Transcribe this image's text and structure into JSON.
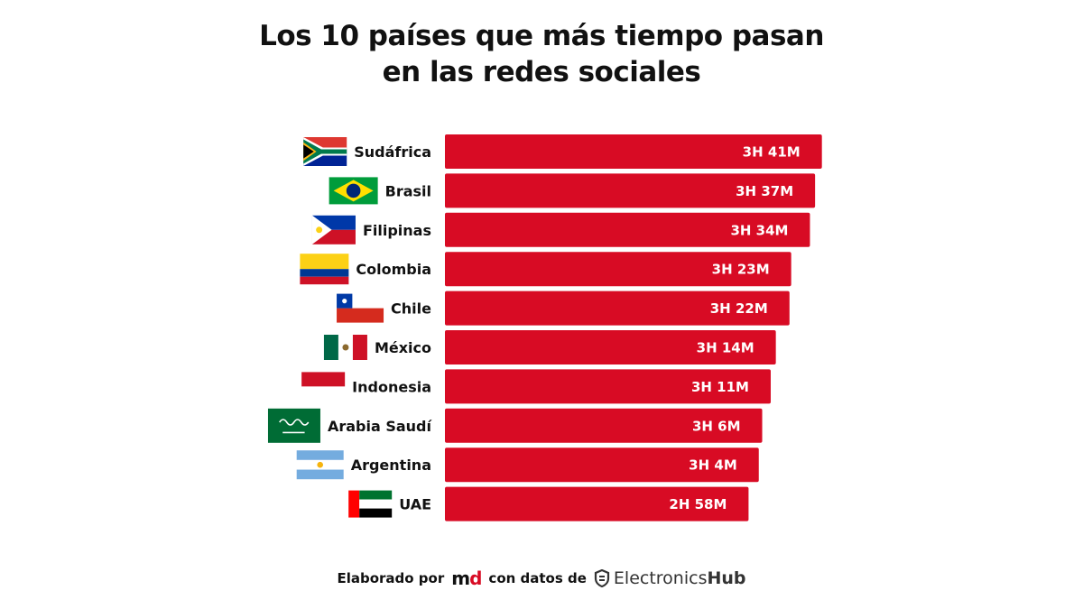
{
  "title_lines": [
    "Los 10 países que más tiempo pasan",
    "en las redes sociales"
  ],
  "footer": {
    "made_by": "Elaborado por",
    "md_logo_m": "m",
    "md_logo_d": "d",
    "with_data": "con datos de",
    "source_main": "Electronics",
    "source_bold": "Hub"
  },
  "colors": {
    "bar": "#d80b24",
    "value_text": "#ffffff"
  },
  "chart_data": {
    "type": "bar",
    "orientation": "horizontal",
    "title": "Los 10 países que más tiempo pasan en las redes sociales",
    "categories": [
      "Sudáfrica",
      "Brasil",
      "Filipinas",
      "Colombia",
      "Chile",
      "México",
      "Indonesia",
      "Arabia Saudí",
      "Argentina",
      "UAE"
    ],
    "values_minutes": [
      221,
      217,
      214,
      203,
      202,
      194,
      191,
      186,
      184,
      178
    ],
    "labels": [
      "3H 41M",
      "3H 37M",
      "3H 34M",
      "3H 23M",
      "3H 22M",
      "3H 14M",
      "3H 11M",
      "3H 6M",
      "3H 4M",
      "2H 58M"
    ],
    "flags": [
      "south-africa-flag",
      "brazil-flag",
      "philippines-flag",
      "colombia-flag",
      "chile-flag",
      "mexico-flag",
      "indonesia-flag",
      "saudi-arabia-flag",
      "argentina-flag",
      "uae-flag"
    ],
    "grid": false,
    "legend": "none"
  }
}
